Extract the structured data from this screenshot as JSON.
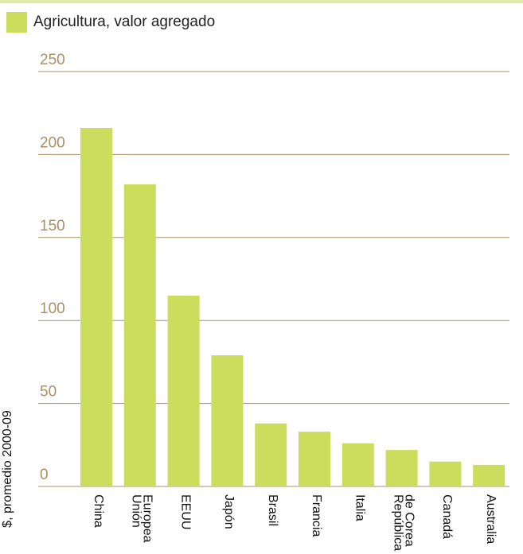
{
  "colors": {
    "bar": "#cbdd5c",
    "grid": "#a89166",
    "tick_label": "#a89166",
    "top_rule": "#dfe8a8"
  },
  "legend": {
    "label": "Agricultura, valor agregado"
  },
  "chart_data": {
    "type": "bar",
    "categories": [
      "China",
      "Unión Europea",
      "EEUU",
      "Japón",
      "Brasil",
      "Francia",
      "Italia",
      "República de Corea",
      "Canadá",
      "Australia"
    ],
    "category_lines": [
      [
        "China"
      ],
      [
        "Unión",
        "Europea"
      ],
      [
        "EEUU"
      ],
      [
        "Japón"
      ],
      [
        "Brasil"
      ],
      [
        "Francia"
      ],
      [
        "Italia"
      ],
      [
        "República",
        "de Corea"
      ],
      [
        "Canadá"
      ],
      [
        "Australia"
      ]
    ],
    "series": [
      {
        "name": "Agricultura, valor agregado",
        "values": [
          216,
          182,
          115,
          79,
          38,
          33,
          26,
          22,
          15,
          13
        ]
      }
    ],
    "yticks": [
      0,
      50,
      100,
      150,
      200,
      250
    ],
    "ylim": [
      0,
      250
    ],
    "xlabel": "",
    "ylabel": "$, promedio 2000-09",
    "grid": true,
    "legend_position": "top-left"
  }
}
